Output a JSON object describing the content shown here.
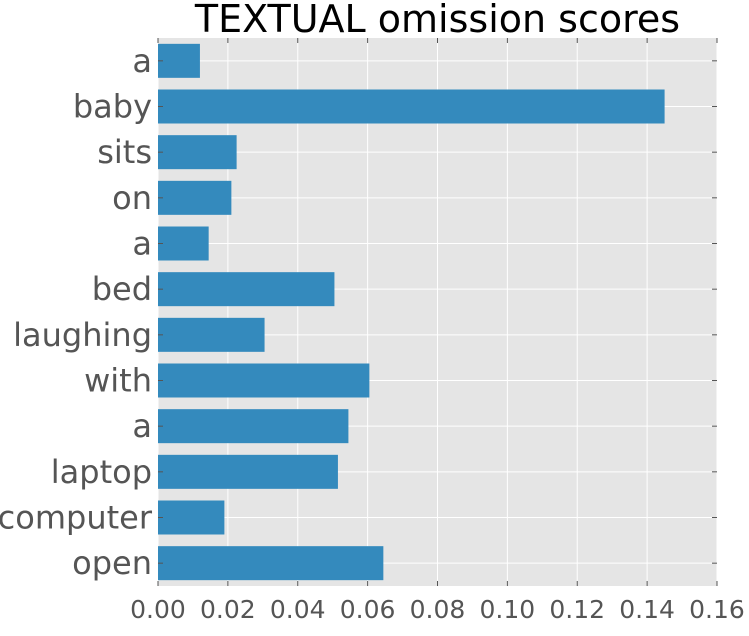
{
  "chart_data": {
    "type": "bar",
    "orientation": "horizontal",
    "title": "TEXTUAL omission scores",
    "xlabel": "",
    "ylabel": "",
    "categories": [
      "a",
      "baby",
      "sits",
      "on",
      "a",
      "bed",
      "laughing",
      "with",
      "a",
      "laptop",
      "computer",
      "open"
    ],
    "values": [
      0.012,
      0.145,
      0.0225,
      0.021,
      0.0145,
      0.0505,
      0.0305,
      0.0605,
      0.0545,
      0.0515,
      0.019,
      0.0645
    ],
    "xlim": [
      0,
      0.16
    ],
    "xticks": [
      "0.00",
      "0.02",
      "0.04",
      "0.06",
      "0.08",
      "0.10",
      "0.12",
      "0.14",
      "0.16"
    ],
    "grid": true,
    "colors": {
      "bar": "#348abd",
      "background": "#e5e5e5",
      "grid": "#ffffff"
    }
  }
}
